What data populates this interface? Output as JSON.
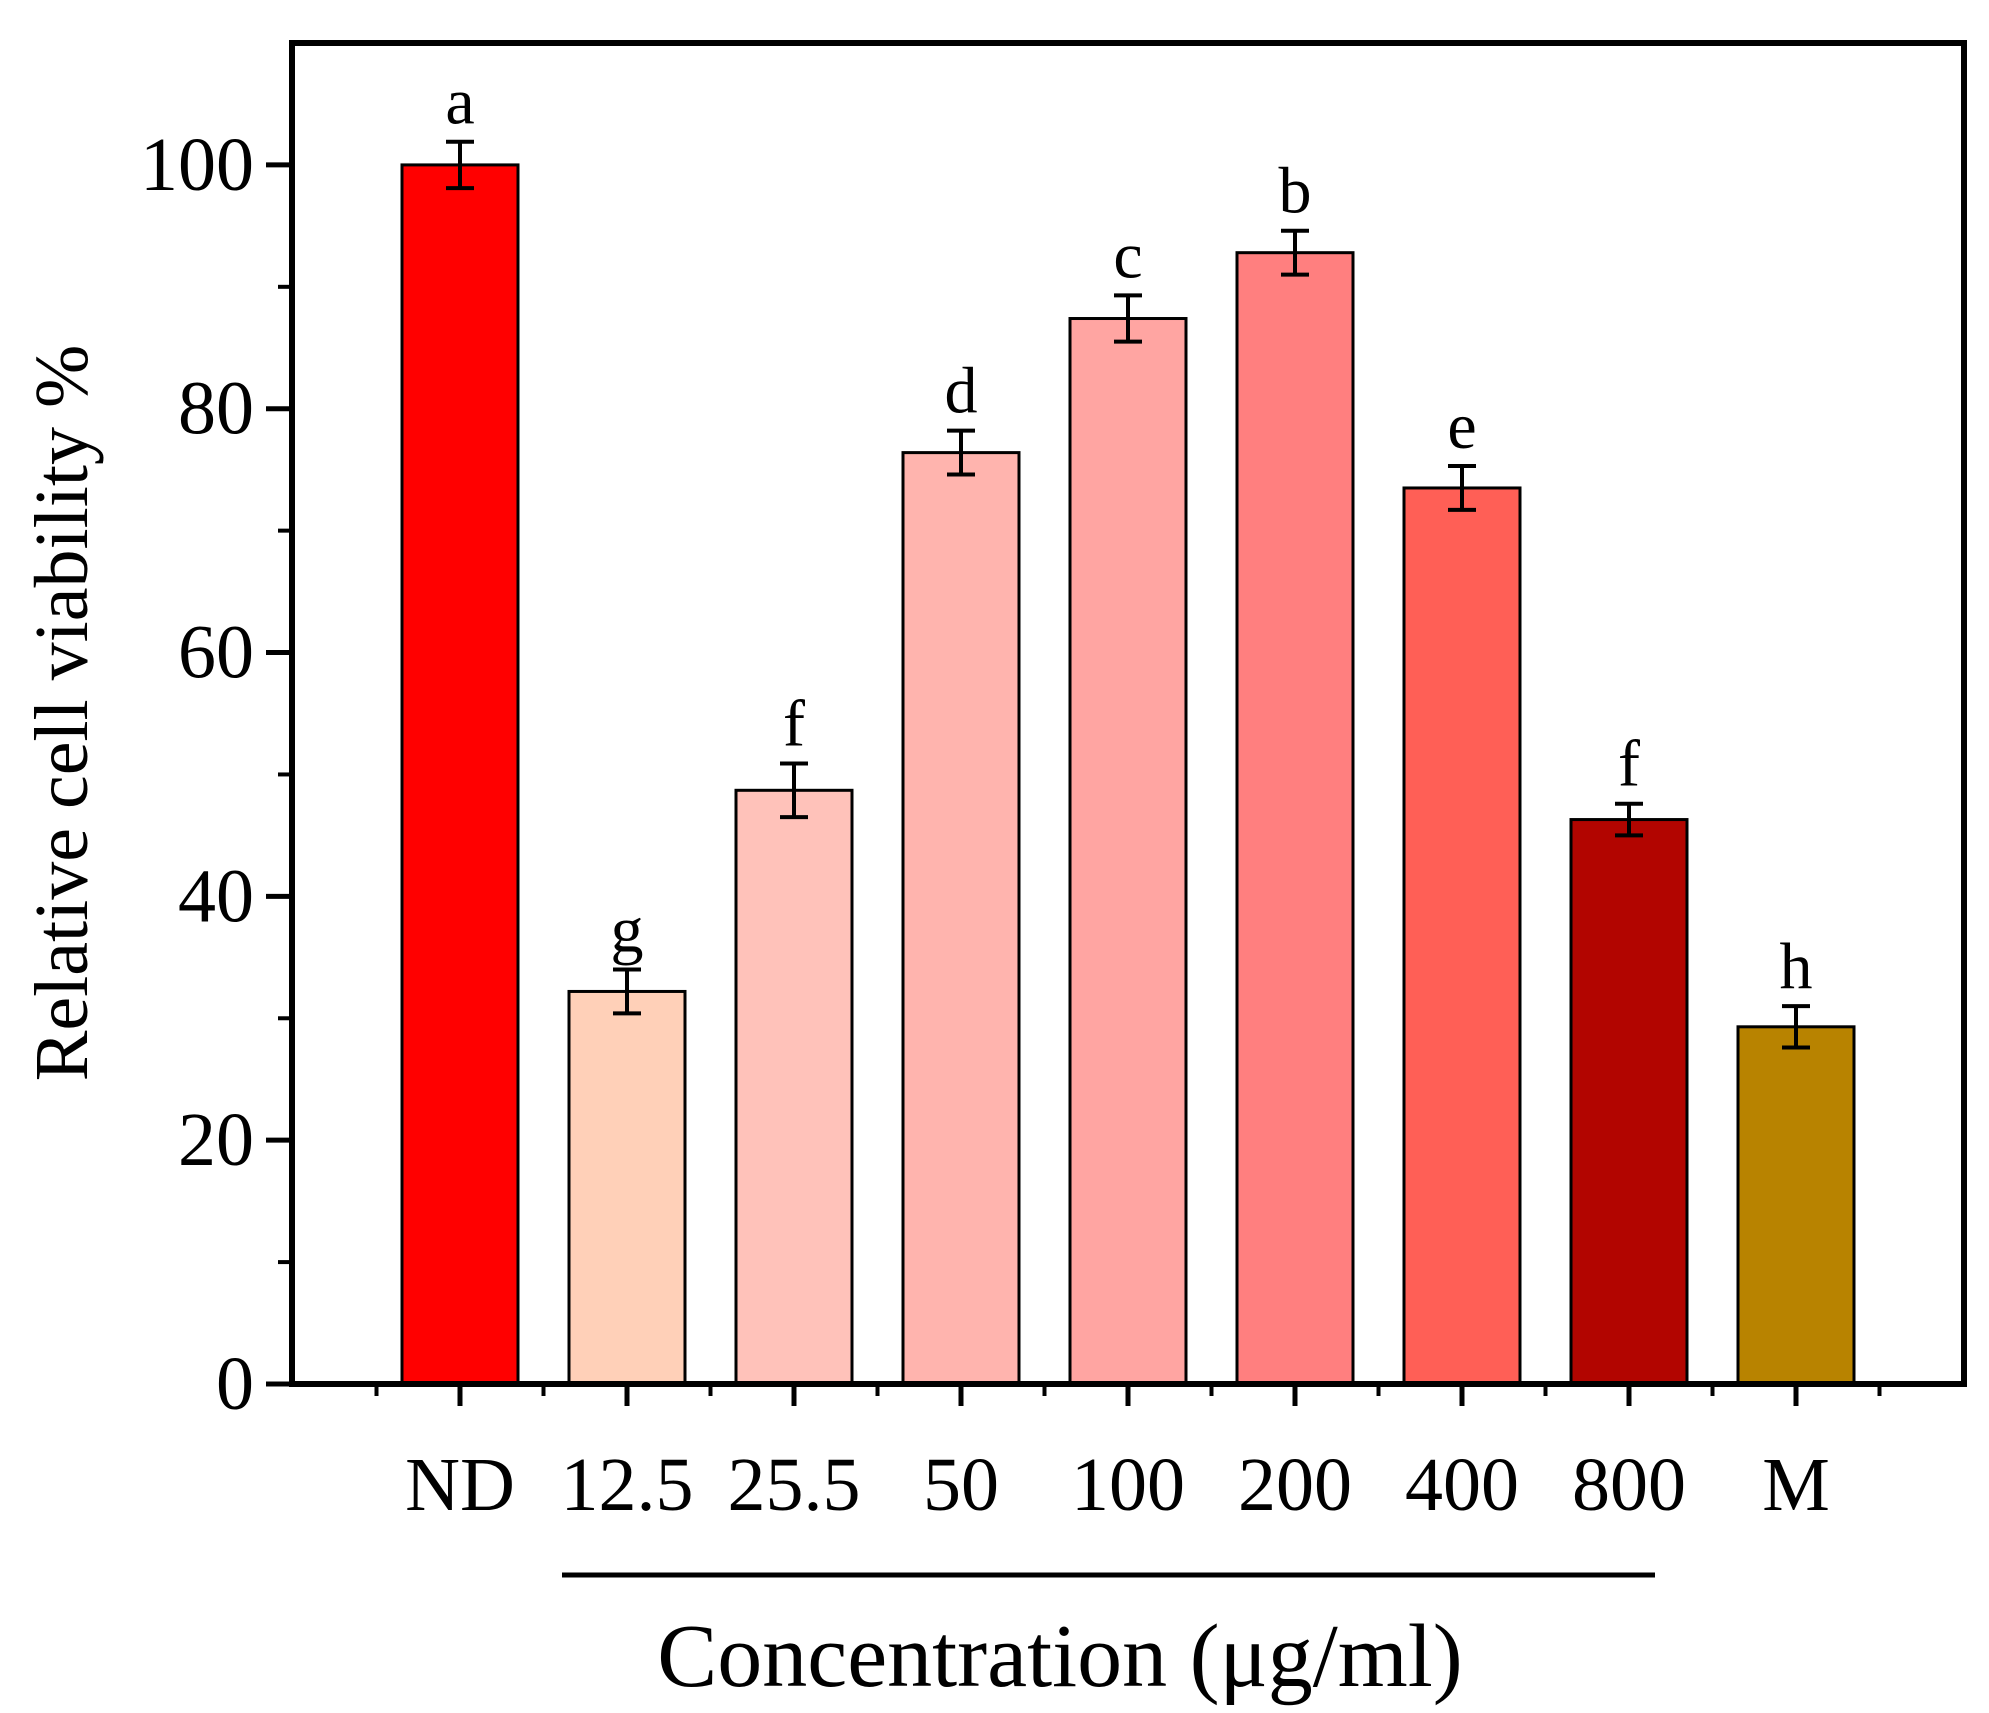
{
  "chart_data": {
    "type": "bar",
    "ylabel": "Relative cell viability %",
    "xlabel": "Concentration (μg/ml)",
    "ylim": [
      0,
      110
    ],
    "yticks": [
      0,
      20,
      40,
      60,
      80,
      100
    ],
    "grid": false,
    "bars": [
      {
        "category": "ND",
        "value": 100,
        "error": 1.9,
        "letter": "a",
        "color": "#FF0000"
      },
      {
        "category": "12.5",
        "value": 32.2,
        "error": 1.8,
        "letter": "g",
        "color": "#FFD0B8"
      },
      {
        "category": "25.5",
        "value": 48.7,
        "error": 2.2,
        "letter": "f",
        "color": "#FFC2BA"
      },
      {
        "category": "50",
        "value": 76.4,
        "error": 1.8,
        "letter": "d",
        "color": "#FFB4AE"
      },
      {
        "category": "100",
        "value": 87.4,
        "error": 1.9,
        "letter": "c",
        "color": "#FFA5A2"
      },
      {
        "category": "200",
        "value": 92.8,
        "error": 1.8,
        "letter": "b",
        "color": "#FF7F7F"
      },
      {
        "category": "400",
        "value": 73.5,
        "error": 1.8,
        "letter": "e",
        "color": "#FF5F56"
      },
      {
        "category": "800",
        "value": 46.3,
        "error": 1.3,
        "letter": "f",
        "color": "#B20500"
      },
      {
        "category": "M",
        "value": 29.3,
        "error": 1.7,
        "letter": "h",
        "color": "#B88300"
      }
    ]
  }
}
